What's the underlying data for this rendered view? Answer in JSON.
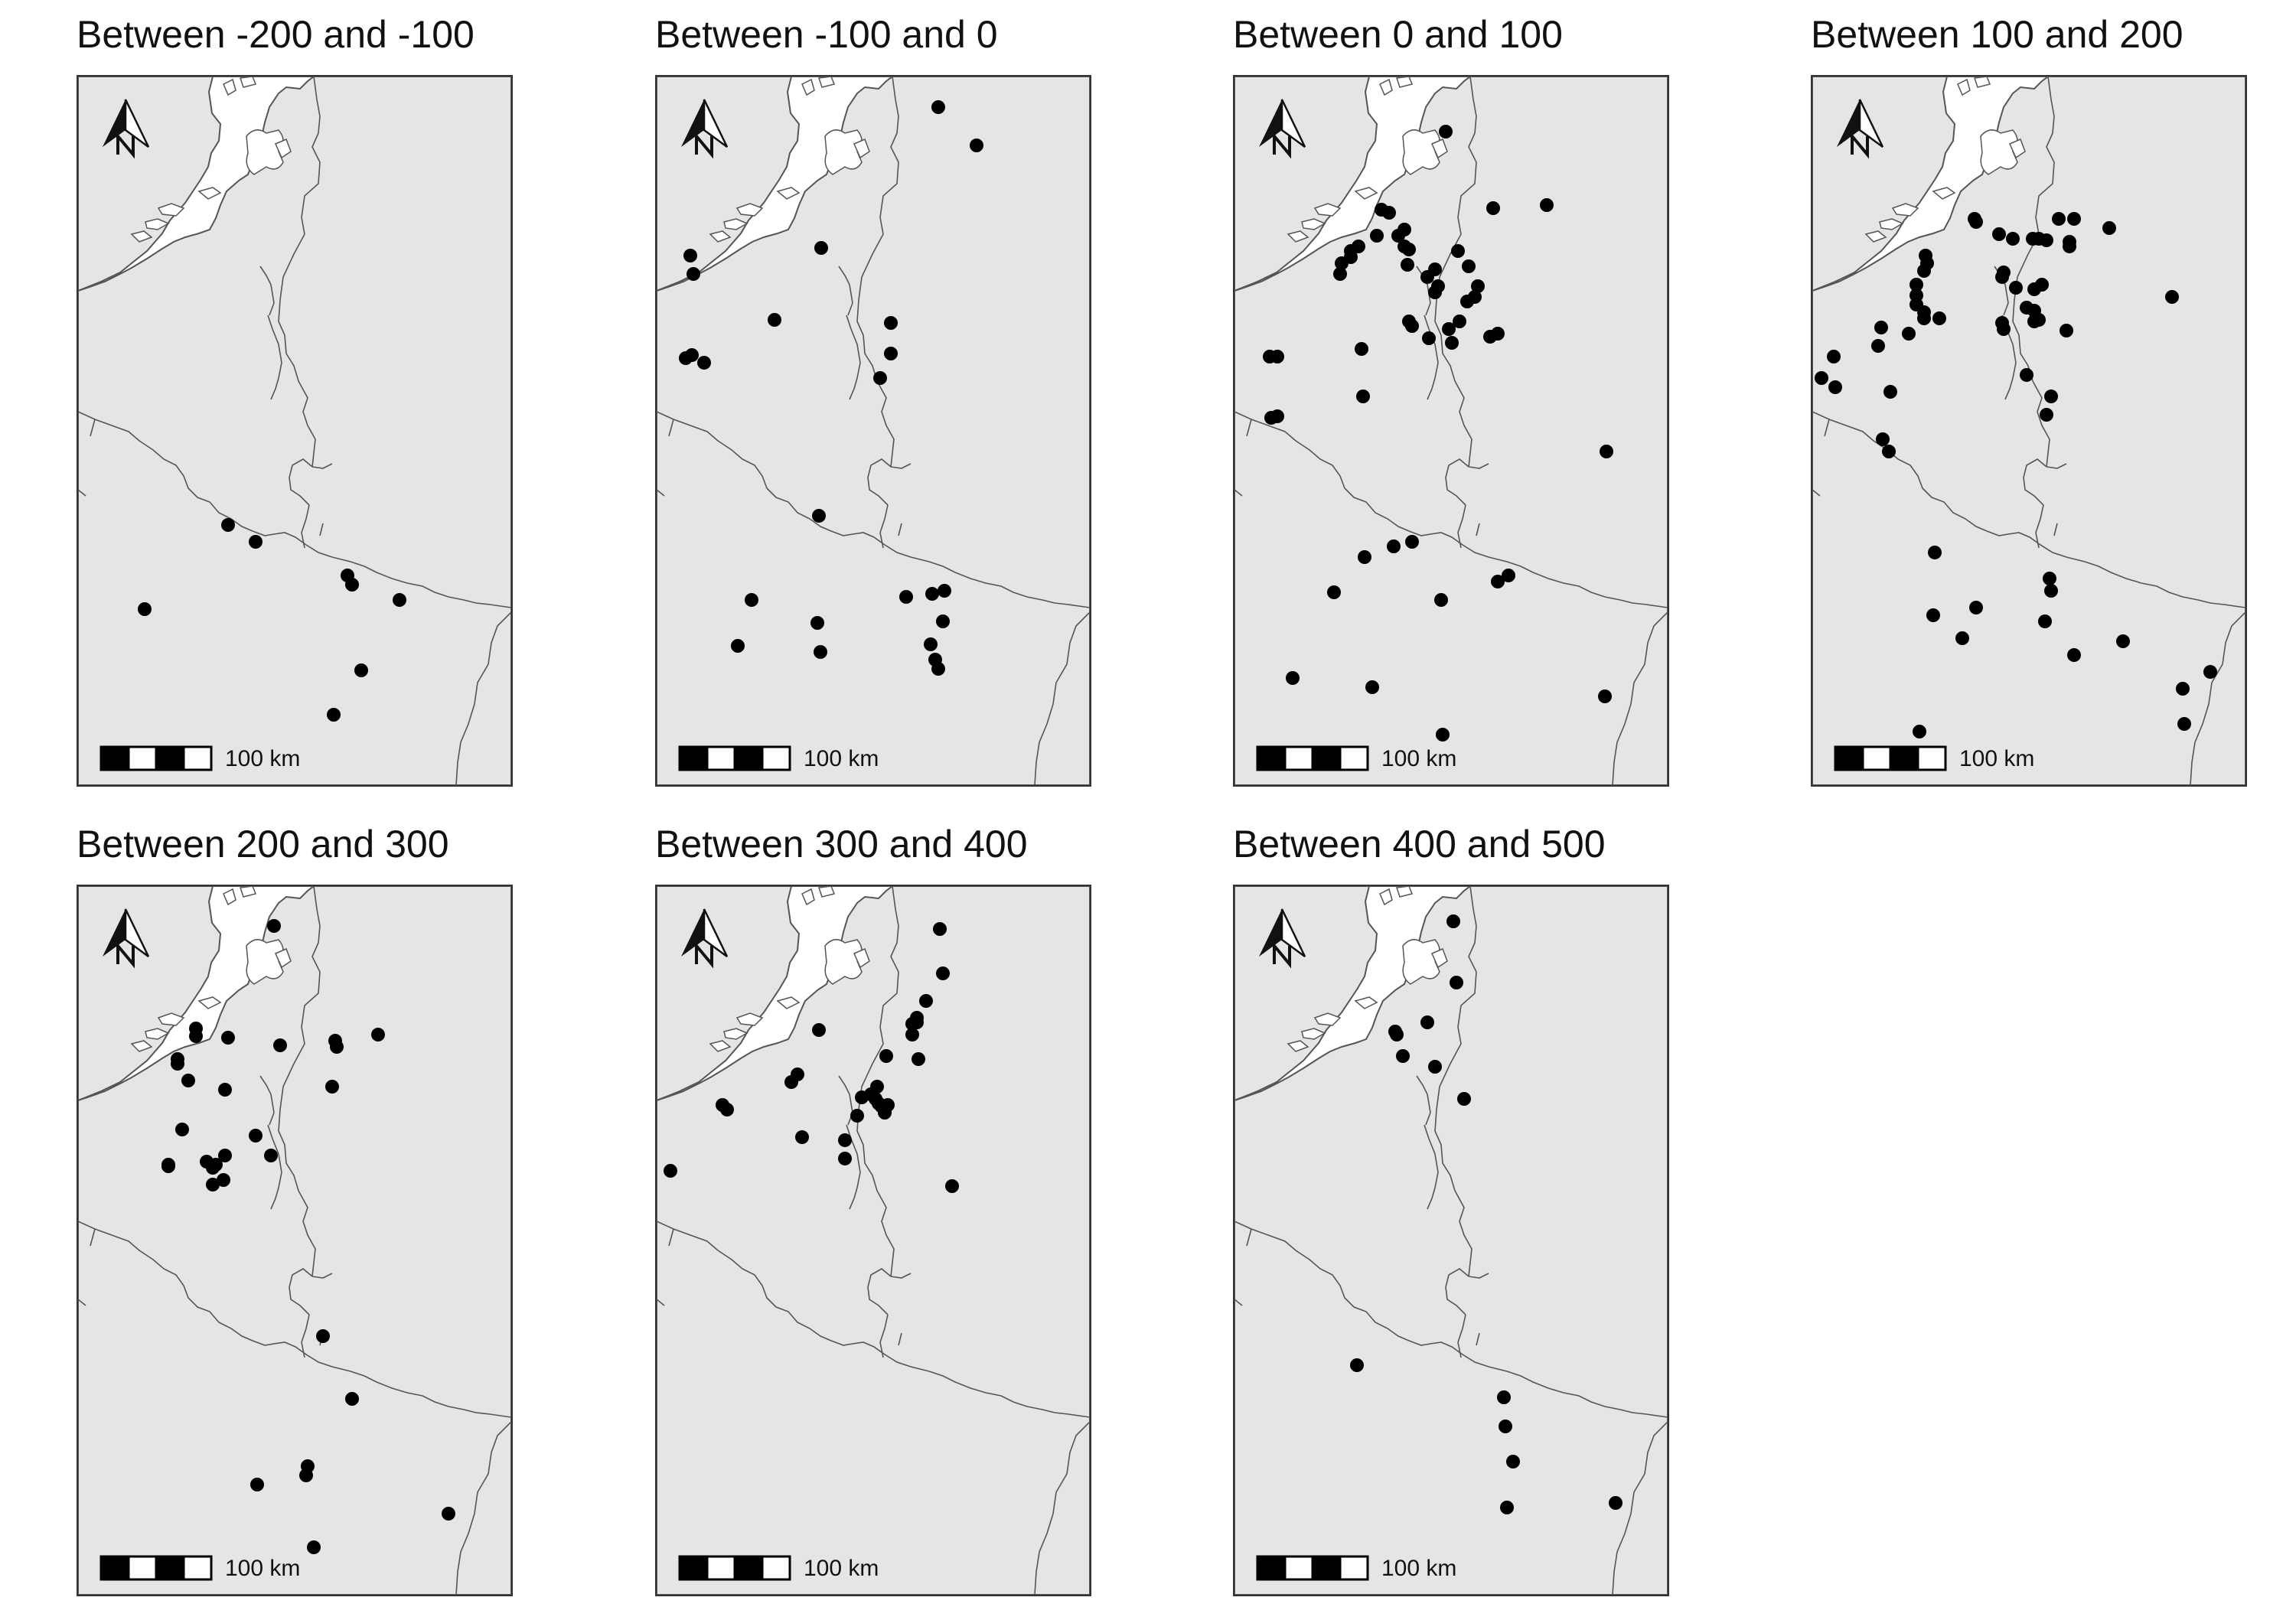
{
  "figure": {
    "panels": [
      {
        "title": "Between -200 and -100",
        "scale_label": "100 km"
      },
      {
        "title": "Between -100 and 0",
        "scale_label": "100 km"
      },
      {
        "title": "Between 0 and 100",
        "scale_label": "100 km"
      },
      {
        "title": "Between 100 and 200",
        "scale_label": "100 km"
      },
      {
        "title": "Between 200 and 300",
        "scale_label": "100 km"
      },
      {
        "title": "Between 300 and 400",
        "scale_label": "100 km"
      },
      {
        "title": "Between 400 and 500",
        "scale_label": "100 km"
      }
    ],
    "north_arrow_label": "N",
    "colors": {
      "land": "#e5e5e5",
      "sea": "#ffffff",
      "border": "#555555",
      "point": "#000000",
      "frame": "#333333"
    }
  }
}
